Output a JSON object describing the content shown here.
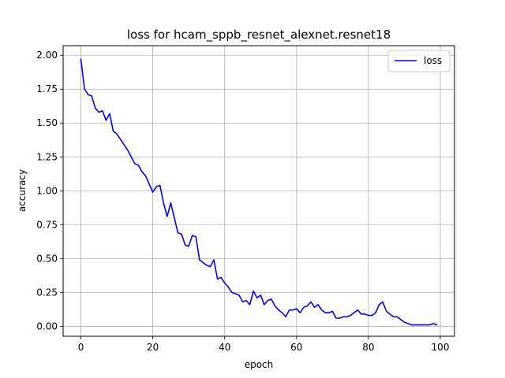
{
  "chart_data": {
    "type": "line",
    "title": "loss for hcam_sppb_resnet_alexnet.resnet18",
    "xlabel": "epoch",
    "ylabel": "accuracy",
    "xlim": [
      -4.95,
      103.95
    ],
    "ylim": [
      -0.0737,
      2.071
    ],
    "xticks": [
      0,
      20,
      40,
      60,
      80,
      100
    ],
    "xtick_labels": [
      "0",
      "20",
      "40",
      "60",
      "80",
      "100"
    ],
    "yticks": [
      0.0,
      0.25,
      0.5,
      0.75,
      1.0,
      1.25,
      1.5,
      1.75,
      2.0
    ],
    "ytick_labels": [
      "0.00",
      "0.25",
      "0.50",
      "0.75",
      "1.00",
      "1.25",
      "1.50",
      "1.75",
      "2.00"
    ],
    "grid": true,
    "legend": "upper-right",
    "series": [
      {
        "name": "loss",
        "color": "#0000ff",
        "x": [
          0,
          1,
          2,
          3,
          4,
          5,
          6,
          7,
          8,
          9,
          10,
          11,
          12,
          13,
          14,
          15,
          16,
          17,
          18,
          19,
          20,
          21,
          22,
          23,
          24,
          25,
          26,
          27,
          28,
          29,
          30,
          31,
          32,
          33,
          34,
          35,
          36,
          37,
          38,
          39,
          40,
          41,
          42,
          43,
          44,
          45,
          46,
          47,
          48,
          49,
          50,
          51,
          52,
          53,
          54,
          55,
          56,
          57,
          58,
          59,
          60,
          61,
          62,
          63,
          64,
          65,
          66,
          67,
          68,
          69,
          70,
          71,
          72,
          73,
          74,
          75,
          76,
          77,
          78,
          79,
          80,
          81,
          82,
          83,
          84,
          85,
          86,
          87,
          88,
          89,
          90,
          91,
          92,
          93,
          94,
          95,
          96,
          97,
          98,
          99
        ],
        "values": [
          1.97,
          1.75,
          1.71,
          1.7,
          1.61,
          1.58,
          1.59,
          1.52,
          1.57,
          1.44,
          1.42,
          1.38,
          1.34,
          1.3,
          1.25,
          1.2,
          1.19,
          1.14,
          1.11,
          1.05,
          0.99,
          1.03,
          1.04,
          0.91,
          0.81,
          0.91,
          0.8,
          0.69,
          0.68,
          0.6,
          0.59,
          0.67,
          0.66,
          0.49,
          0.47,
          0.45,
          0.44,
          0.49,
          0.35,
          0.36,
          0.32,
          0.29,
          0.25,
          0.24,
          0.23,
          0.18,
          0.19,
          0.16,
          0.26,
          0.21,
          0.23,
          0.16,
          0.19,
          0.2,
          0.15,
          0.12,
          0.1,
          0.07,
          0.12,
          0.12,
          0.13,
          0.1,
          0.14,
          0.15,
          0.18,
          0.14,
          0.16,
          0.12,
          0.1,
          0.1,
          0.11,
          0.06,
          0.06,
          0.07,
          0.07,
          0.08,
          0.1,
          0.12,
          0.09,
          0.09,
          0.08,
          0.08,
          0.1,
          0.16,
          0.18,
          0.11,
          0.09,
          0.07,
          0.07,
          0.05,
          0.03,
          0.02,
          0.01,
          0.01,
          0.01,
          0.01,
          0.01,
          0.01,
          0.02,
          0.01
        ]
      }
    ]
  }
}
